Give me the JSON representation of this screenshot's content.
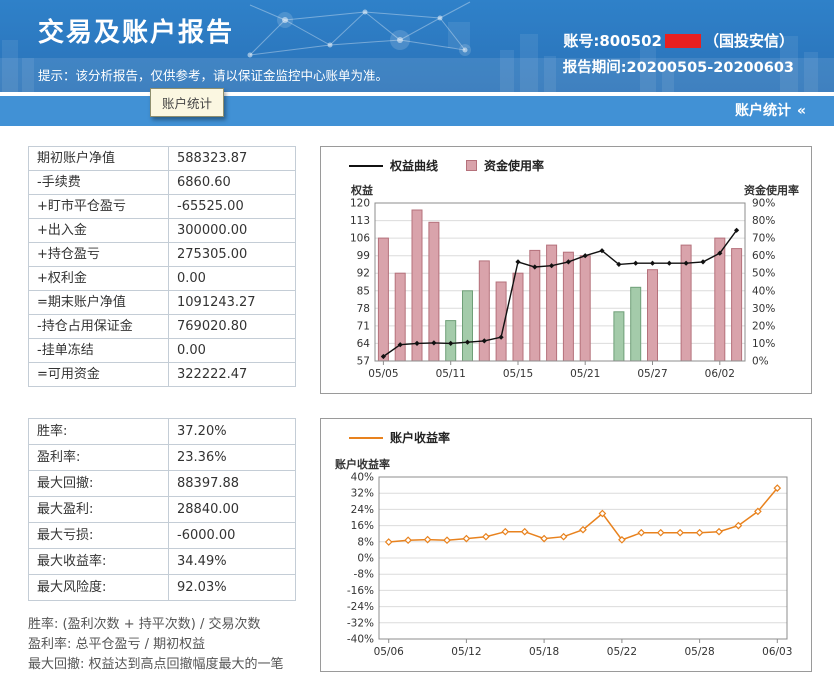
{
  "header": {
    "title": "交易及账户报告",
    "subtitle": "提示：该分析报告，仅供参考，请以保证金监控中心账单为准。",
    "account_prefix": "账号:800502",
    "account_suffix": "（国投安信）",
    "period": "报告期间:20200505-20200603"
  },
  "subnav": {
    "tooltip": "账户统计",
    "toggle_label": "账户统计",
    "collapse_icon": "«"
  },
  "account_table": {
    "rows": [
      {
        "label": "期初账户净值",
        "value": "588323.87"
      },
      {
        "label": "-手续费",
        "value": "6860.60"
      },
      {
        "label": "+盯市平仓盈亏",
        "value": "-65525.00"
      },
      {
        "label": "+出入金",
        "value": "300000.00"
      },
      {
        "label": "+持仓盈亏",
        "value": "275305.00"
      },
      {
        "label": "+权利金",
        "value": "0.00"
      },
      {
        "label": "=期末账户净值",
        "value": "1091243.27"
      },
      {
        "label": "-持仓占用保证金",
        "value": "769020.80"
      },
      {
        "label": "-挂单冻结",
        "value": "0.00"
      },
      {
        "label": "=可用资金",
        "value": "322222.47"
      }
    ]
  },
  "stats_table": {
    "rows": [
      {
        "label": "胜率:",
        "value": "37.20%"
      },
      {
        "label": "盈利率:",
        "value": "23.36%"
      },
      {
        "label": "最大回撤:",
        "value": "88397.88"
      },
      {
        "label": "最大盈利:",
        "value": "28840.00"
      },
      {
        "label": "最大亏损:",
        "value": "-6000.00"
      },
      {
        "label": "最大收益率:",
        "value": "34.49%"
      },
      {
        "label": "最大风险度:",
        "value": "92.03%"
      }
    ]
  },
  "notes": [
    "胜率: (盈利次数 + 持平次数) / 交易次数",
    "盈利率: 总平仓盈亏 / 期初权益",
    "最大回撤: 权益达到高点回撤幅度最大的一笔"
  ],
  "colors": {
    "header_blue": "#2f81c9",
    "subnav_blue": "#4191d5",
    "bar_pink": "#d9a3ab",
    "bar_pink_border": "#b5717b",
    "bar_green": "#a4cbaa",
    "bar_green_border": "#6f9f78",
    "equity_line": "#111111",
    "return_line": "#e8821e",
    "redaction": "#e82020",
    "grid": "#dcdcdc",
    "plot_border": "#8c8c8c"
  },
  "chart_data": [
    {
      "type": "bar",
      "name": "equity-and-capital-usage",
      "legend": [
        {
          "label": "权益曲线",
          "type": "line",
          "color": "#111111"
        },
        {
          "label": "资金使用率",
          "type": "bar",
          "color": "#d9a3ab"
        }
      ],
      "left_axis": {
        "title": "权益",
        "min": 57,
        "max": 120,
        "step": 7
      },
      "right_axis": {
        "title": "资金使用率",
        "min": 0,
        "max": 90,
        "step": 10,
        "suffix": "%"
      },
      "x": [
        "05/05",
        "05/06",
        "05/07",
        "05/08",
        "05/11",
        "05/12",
        "05/13",
        "05/14",
        "05/15",
        "05/18",
        "05/19",
        "05/20",
        "05/21",
        "05/22",
        "05/25",
        "05/26",
        "05/27",
        "05/28",
        "05/29",
        "06/01",
        "06/02",
        "06/03"
      ],
      "x_tick_indices": [
        0,
        4,
        8,
        12,
        16,
        20
      ],
      "x_tick_labels": [
        "05/05",
        "05/11",
        "05/15",
        "05/21",
        "05/27",
        "06/02"
      ],
      "series": [
        {
          "name": "权益曲线",
          "type": "line",
          "axis": "left",
          "values": [
            58.8,
            63.5,
            64.0,
            64.2,
            64.0,
            64.5,
            65.0,
            66.5,
            96.5,
            94.5,
            95.0,
            96.5,
            99.0,
            101.0,
            95.5,
            96.0,
            96.0,
            96.0,
            96.0,
            96.5,
            100.0,
            109.1
          ]
        },
        {
          "name": "资金使用率",
          "type": "bar",
          "axis": "right",
          "values": [
            70,
            50,
            86,
            79,
            23,
            40,
            57,
            45,
            50,
            63,
            66,
            62,
            60,
            null,
            28,
            42,
            52,
            null,
            66,
            null,
            70,
            64
          ],
          "colors": [
            "pink",
            "pink",
            "pink",
            "pink",
            "green",
            "green",
            "pink",
            "pink",
            "pink",
            "pink",
            "pink",
            "pink",
            "pink",
            null,
            "green",
            "green",
            "pink",
            null,
            "pink",
            null,
            "pink",
            "pink"
          ]
        }
      ]
    },
    {
      "type": "line",
      "name": "account-return-rate",
      "legend": [
        {
          "label": "账户收益率",
          "type": "line",
          "color": "#e8821e"
        }
      ],
      "y_axis": {
        "title": "账户收益率",
        "min": -40,
        "max": 40,
        "step": 8,
        "suffix": "%"
      },
      "x": [
        "05/06",
        "05/07",
        "05/08",
        "05/11",
        "05/12",
        "05/13",
        "05/14",
        "05/15",
        "05/18",
        "05/19",
        "05/20",
        "05/21",
        "05/22",
        "05/25",
        "05/26",
        "05/27",
        "05/28",
        "05/29",
        "06/01",
        "06/02",
        "06/03"
      ],
      "x_tick_indices": [
        0,
        4,
        8,
        12,
        16,
        20
      ],
      "x_tick_labels": [
        "05/06",
        "05/12",
        "05/18",
        "05/22",
        "05/28",
        "06/03"
      ],
      "values": [
        7.9,
        8.8,
        9.1,
        8.8,
        9.6,
        10.5,
        13.0,
        13.0,
        9.6,
        10.5,
        14.0,
        22.0,
        9.0,
        12.5,
        12.5,
        12.5,
        12.5,
        13.0,
        16.0,
        23.0,
        34.5
      ]
    }
  ]
}
